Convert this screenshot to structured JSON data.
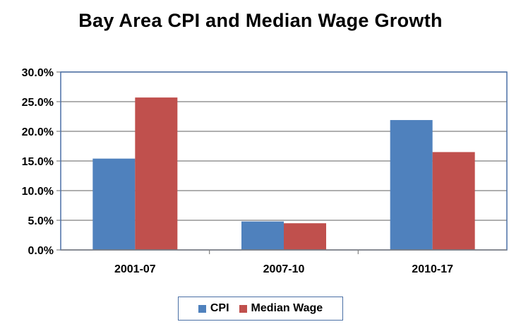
{
  "chart_data": {
    "type": "bar",
    "title": "Bay Area CPI and Median Wage Growth",
    "categories": [
      "2001-07",
      "2007-10",
      "2010-17"
    ],
    "series": [
      {
        "name": "CPI",
        "color": "#4f81bd",
        "values": [
          15.4,
          4.8,
          21.9
        ]
      },
      {
        "name": "Median Wage",
        "color": "#c0504d",
        "values": [
          25.7,
          4.5,
          16.5
        ]
      }
    ],
    "ylim": [
      0,
      30
    ],
    "yticks": [
      "0.0%",
      "5.0%",
      "10.0%",
      "15.0%",
      "20.0%",
      "25.0%",
      "30.0%"
    ],
    "grid": true,
    "legend": "bottom"
  }
}
